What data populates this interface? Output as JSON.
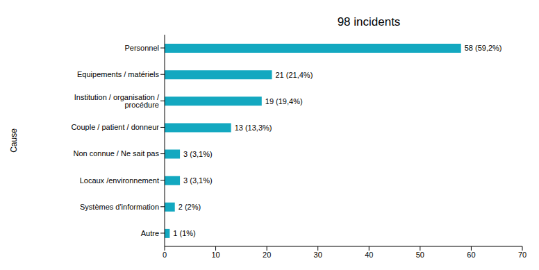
{
  "chart_data": {
    "type": "bar",
    "orientation": "horizontal",
    "title": "98 incidents",
    "y_label": "Cause",
    "categories": [
      "Personnel",
      "Equipements / matériels",
      "Institution / organisation / procédure",
      "Couple / patient / donneur",
      "Non connue / Ne sait pas",
      "Locaux /environnement",
      "Systèmes d'information",
      "Autre"
    ],
    "values": [
      58,
      21,
      19,
      13,
      3,
      3,
      2,
      1
    ],
    "value_labels": [
      "58 (59,2%)",
      "21 (21,4%)",
      "19 (19,4%)",
      "13 (13,3%)",
      "3 (3,1%)",
      "3 (3,1%)",
      "2 (2%)",
      "1 (1%)"
    ],
    "color": "#13a8c0",
    "xlim": [
      0,
      70
    ],
    "xticks": [
      0,
      10,
      20,
      30,
      40,
      50,
      60,
      70
    ],
    "grid": false,
    "data_labels": true
  }
}
